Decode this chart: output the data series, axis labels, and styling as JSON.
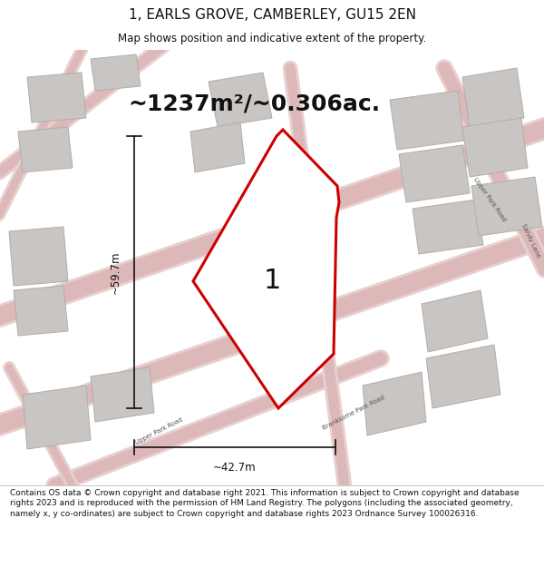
{
  "title": "1, EARLS GROVE, CAMBERLEY, GU15 2EN",
  "subtitle": "Map shows position and indicative extent of the property.",
  "area_text": "~1237m²/~0.306ac.",
  "label": "1",
  "dim_width": "~42.7m",
  "dim_height": "~59.7m",
  "footer": "Contains OS data © Crown copyright and database right 2021. This information is subject to Crown copyright and database rights 2023 and is reproduced with the permission of HM Land Registry. The polygons (including the associated geometry, namely x, y co-ordinates) are subject to Crown copyright and database rights 2023 Ordnance Survey 100026316.",
  "bg_color": "#ffffff",
  "map_bg": "#eeece8",
  "road_color_light": "#ddb8b8",
  "road_color_mid": "#cc9999",
  "building_color": "#c8c5c2",
  "building_edge": "#b0adaa",
  "property_color": "#cc0000",
  "property_fill": "#ffffff",
  "dim_color": "#111111",
  "text_color": "#111111",
  "road_label_color": "#555555",
  "title_fontsize": 11,
  "subtitle_fontsize": 8.5,
  "area_fontsize": 18,
  "dim_fontsize": 8.5,
  "footer_fontsize": 6.5,
  "label_fontsize": 22
}
